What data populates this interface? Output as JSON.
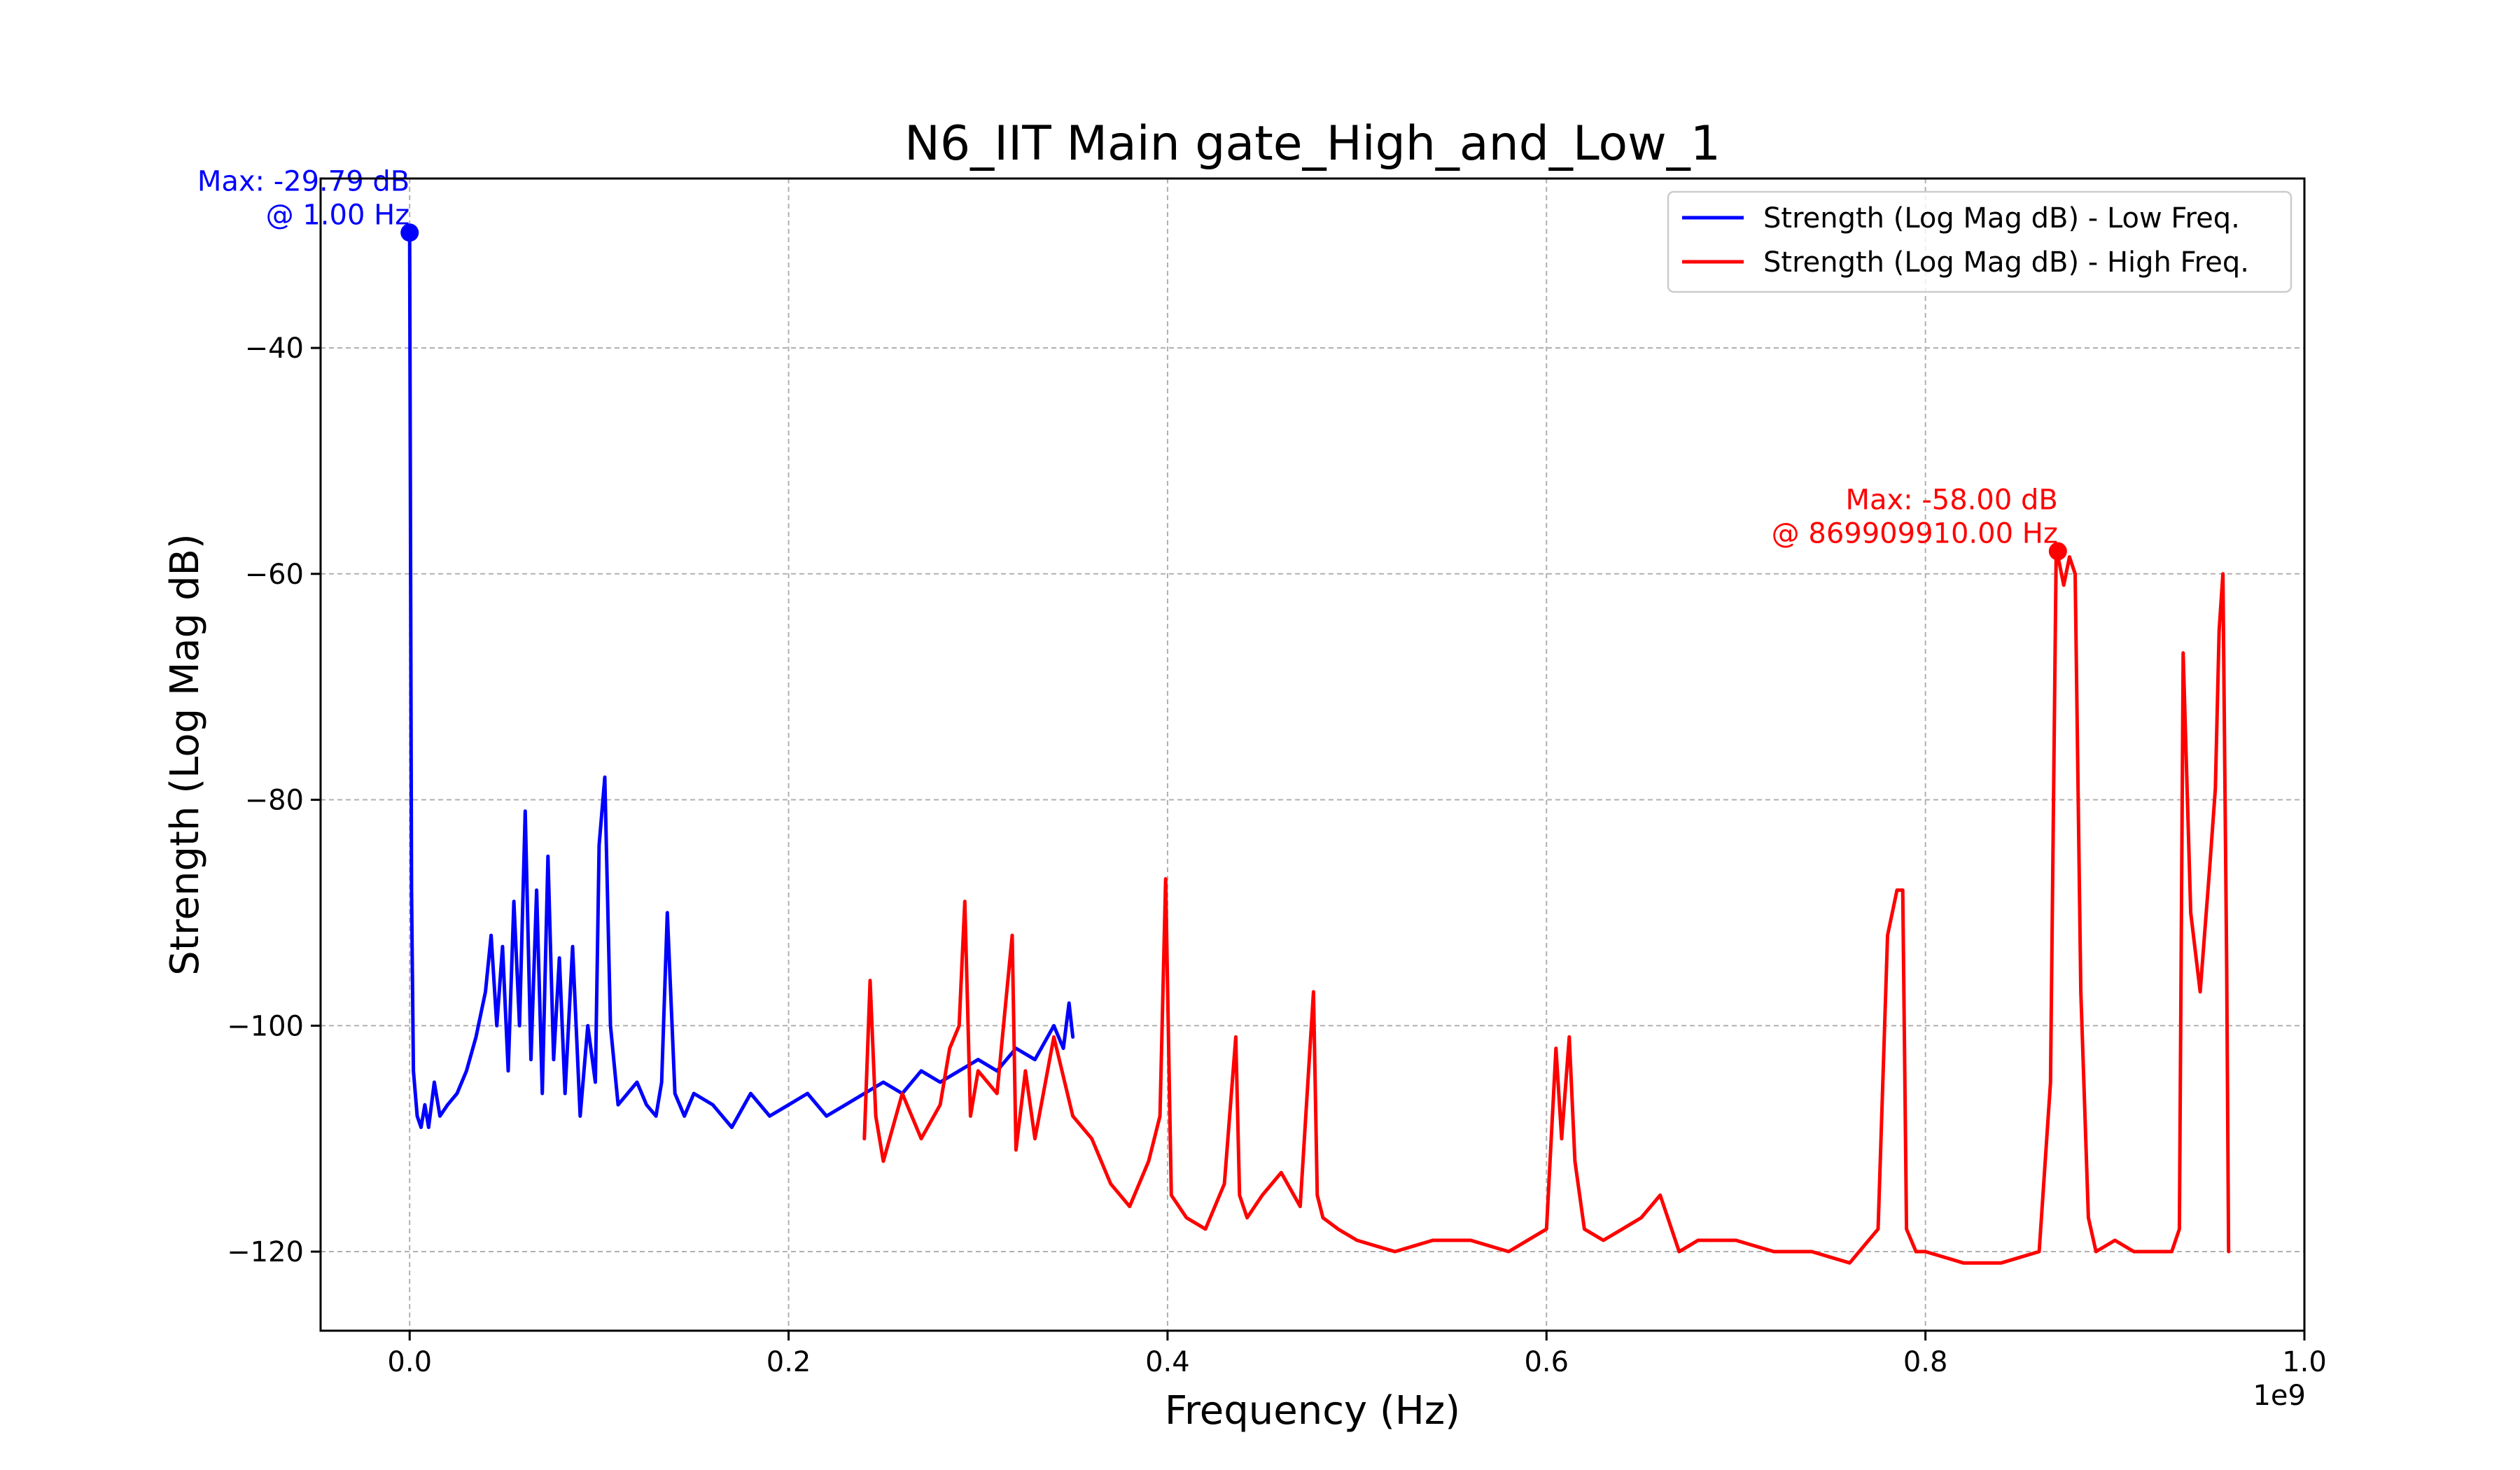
{
  "chart_data": {
    "type": "line",
    "title": "N6_IIT Main gate_High_and_Low_1",
    "xlabel": "Frequency (Hz)",
    "ylabel": "Strength (Log Mag dB)",
    "x_offset_label": "1e9",
    "x_scale_multiplier": 1000000000,
    "xlim": [
      -0.047,
      1.0
    ],
    "ylim": [
      -127,
      -25
    ],
    "x_ticks": [
      0.0,
      0.2,
      0.4,
      0.6,
      0.8,
      1.0
    ],
    "x_tick_labels": [
      "0.0",
      "0.2",
      "0.4",
      "0.6",
      "0.8",
      "1.0"
    ],
    "y_ticks": [
      -40,
      -60,
      -80,
      -100,
      -120
    ],
    "y_tick_labels": [
      "−40",
      "−60",
      "−80",
      "−100",
      "−120"
    ],
    "grid": true,
    "legend_position": "top-right",
    "series": [
      {
        "name": "Strength (Log Mag dB) - Low Freq.",
        "color": "#0000ff",
        "x": [
          0.0,
          0.001,
          0.002,
          0.004,
          0.006,
          0.008,
          0.01,
          0.013,
          0.016,
          0.02,
          0.025,
          0.03,
          0.035,
          0.04,
          0.043,
          0.046,
          0.049,
          0.052,
          0.055,
          0.058,
          0.061,
          0.064,
          0.067,
          0.07,
          0.073,
          0.076,
          0.079,
          0.082,
          0.086,
          0.09,
          0.094,
          0.098,
          0.1,
          0.103,
          0.106,
          0.11,
          0.115,
          0.12,
          0.125,
          0.13,
          0.133,
          0.136,
          0.14,
          0.145,
          0.15,
          0.16,
          0.17,
          0.18,
          0.19,
          0.2,
          0.21,
          0.22,
          0.23,
          0.24,
          0.25,
          0.26,
          0.27,
          0.28,
          0.29,
          0.3,
          0.31,
          0.32,
          0.33,
          0.34,
          0.345,
          0.348,
          0.35
        ],
        "y": [
          -29.79,
          -88,
          -104,
          -108,
          -109,
          -107,
          -109,
          -105,
          -108,
          -107,
          -106,
          -104,
          -101,
          -97,
          -92,
          -100,
          -93,
          -104,
          -89,
          -100,
          -81,
          -103,
          -88,
          -106,
          -85,
          -103,
          -94,
          -106,
          -93,
          -108,
          -100,
          -105,
          -84,
          -78,
          -100,
          -107,
          -106,
          -105,
          -107,
          -108,
          -105,
          -90,
          -106,
          -108,
          -106,
          -107,
          -109,
          -106,
          -108,
          -107,
          -106,
          -108,
          -107,
          -106,
          -105,
          -106,
          -104,
          -105,
          -104,
          -103,
          -104,
          -102,
          -103,
          -100,
          -102,
          -98,
          -101
        ]
      },
      {
        "name": "Strength (Log Mag dB) - High Freq.",
        "color": "#ff0000",
        "x": [
          0.24,
          0.243,
          0.246,
          0.25,
          0.26,
          0.27,
          0.28,
          0.285,
          0.29,
          0.293,
          0.296,
          0.3,
          0.31,
          0.318,
          0.32,
          0.325,
          0.33,
          0.34,
          0.35,
          0.36,
          0.37,
          0.38,
          0.39,
          0.396,
          0.399,
          0.402,
          0.41,
          0.42,
          0.43,
          0.436,
          0.438,
          0.442,
          0.45,
          0.46,
          0.47,
          0.477,
          0.479,
          0.482,
          0.49,
          0.5,
          0.52,
          0.54,
          0.56,
          0.58,
          0.6,
          0.605,
          0.608,
          0.612,
          0.615,
          0.62,
          0.63,
          0.64,
          0.65,
          0.66,
          0.67,
          0.68,
          0.7,
          0.72,
          0.74,
          0.76,
          0.775,
          0.78,
          0.785,
          0.788,
          0.79,
          0.795,
          0.8,
          0.82,
          0.84,
          0.86,
          0.866,
          0.869,
          0.87,
          0.873,
          0.876,
          0.879,
          0.882,
          0.886,
          0.89,
          0.9,
          0.91,
          0.92,
          0.93,
          0.934,
          0.936,
          0.94,
          0.945,
          0.95,
          0.953,
          0.955,
          0.957,
          0.959,
          0.96
        ],
        "y": [
          -110,
          -96,
          -108,
          -112,
          -106,
          -110,
          -107,
          -102,
          -100,
          -89,
          -108,
          -104,
          -106,
          -92,
          -111,
          -104,
          -110,
          -101,
          -108,
          -110,
          -114,
          -116,
          -112,
          -108,
          -87,
          -115,
          -117,
          -118,
          -114,
          -101,
          -115,
          -117,
          -115,
          -113,
          -116,
          -97,
          -115,
          -117,
          -118,
          -119,
          -120,
          -119,
          -119,
          -120,
          -118,
          -102,
          -110,
          -101,
          -112,
          -118,
          -119,
          -118,
          -117,
          -115,
          -120,
          -119,
          -119,
          -120,
          -120,
          -121,
          -118,
          -92,
          -88,
          -88,
          -118,
          -120,
          -120,
          -121,
          -121,
          -120,
          -105,
          -58,
          -58.5,
          -61,
          -58.5,
          -60,
          -97,
          -117,
          -120,
          -119,
          -120,
          -120,
          -120,
          -118,
          -67,
          -90,
          -97,
          -86,
          -79,
          -65,
          -60,
          -95,
          -120
        ]
      }
    ],
    "annotations": [
      {
        "series": "Strength (Log Mag dB) - Low Freq.",
        "x": 0.0,
        "y": -29.79,
        "line1": "Max: -29.79 dB",
        "line2": "@ 1.00 Hz",
        "color": "#0000ff"
      },
      {
        "series": "Strength (Log Mag dB) - High Freq.",
        "x": 0.8699,
        "y": -58.0,
        "line1": "Max: -58.00 dB",
        "line2": "@ 869909910.00 Hz",
        "color": "#ff0000"
      }
    ]
  }
}
